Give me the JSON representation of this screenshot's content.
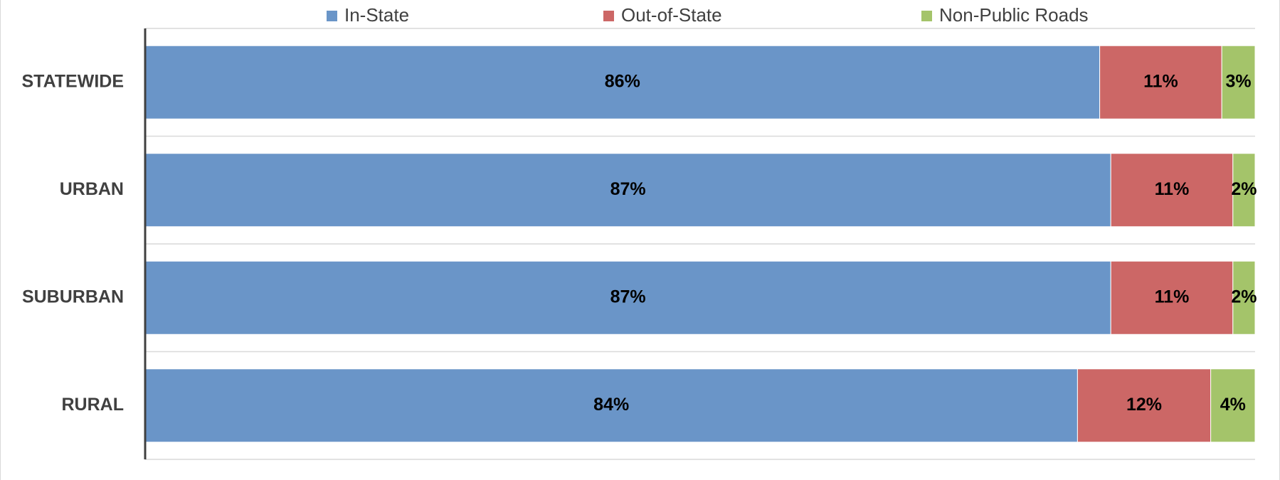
{
  "chart_data": {
    "type": "stacked-barh",
    "categories": [
      "STATEWIDE",
      "URBAN",
      "SUBURBAN",
      "RURAL"
    ],
    "series": [
      {
        "name": "In-State",
        "color": "#6a95c8",
        "values": [
          86,
          87,
          87,
          84
        ],
        "value_labels": [
          "86%",
          "87%",
          "87%",
          "84%"
        ]
      },
      {
        "name": "Out-of-State",
        "color": "#cc6766",
        "values": [
          11,
          11,
          11,
          12
        ],
        "value_labels": [
          "11%",
          "11%",
          "11%",
          "12%"
        ]
      },
      {
        "name": "Non-Public Roads",
        "color": "#a4c46a",
        "values": [
          3,
          2,
          2,
          4
        ],
        "value_labels": [
          "3%",
          "2%",
          "2%",
          "4%"
        ]
      }
    ],
    "xlim": [
      0,
      100
    ],
    "legend": "top"
  }
}
